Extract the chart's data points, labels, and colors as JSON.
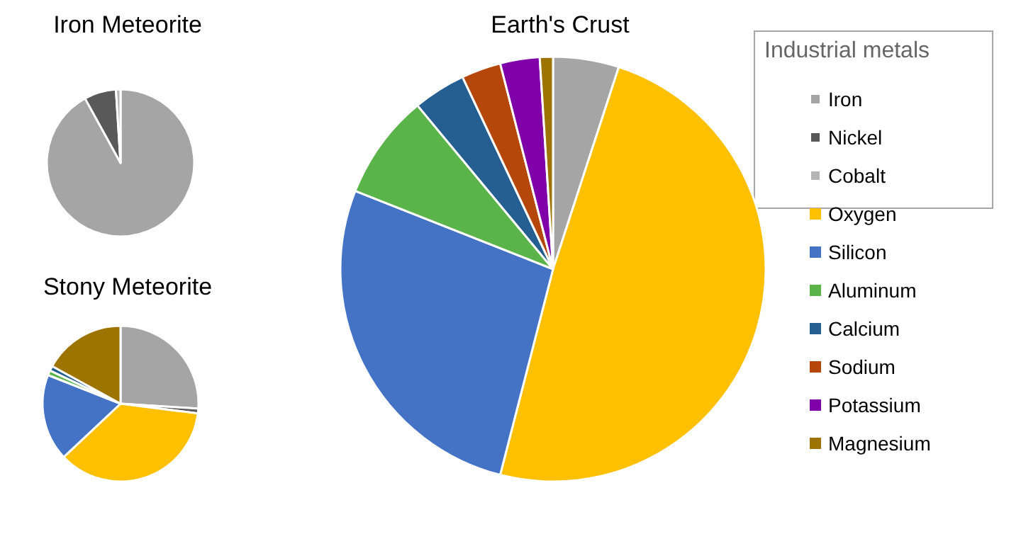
{
  "chart_data": {
    "type": "pie",
    "legend": "right",
    "legend_title": "Industrial metals",
    "categories": [
      "Iron",
      "Nickel",
      "Cobalt",
      "Oxygen",
      "Silicon",
      "Aluminum",
      "Calcium",
      "Sodium",
      "Potassium",
      "Magnesium"
    ],
    "colors": [
      "#a5a5a5",
      "#595959",
      "#b4b4b4",
      "#ffc000",
      "#4472c4",
      "#5bb44a",
      "#255e91",
      "#b5470b",
      "#7f00a8",
      "#9e7400"
    ],
    "series": [
      {
        "name": "Iron Meteorite",
        "values": [
          92,
          7,
          1,
          0,
          0,
          0,
          0,
          0,
          0,
          0
        ]
      },
      {
        "name": "Earth's Crust",
        "values": [
          5,
          0,
          0,
          49,
          27,
          8,
          4,
          3,
          3,
          1
        ]
      },
      {
        "name": "Stony Meteorite",
        "values": [
          26,
          1,
          0,
          36,
          18,
          1,
          1,
          0,
          0,
          17
        ]
      }
    ]
  }
}
